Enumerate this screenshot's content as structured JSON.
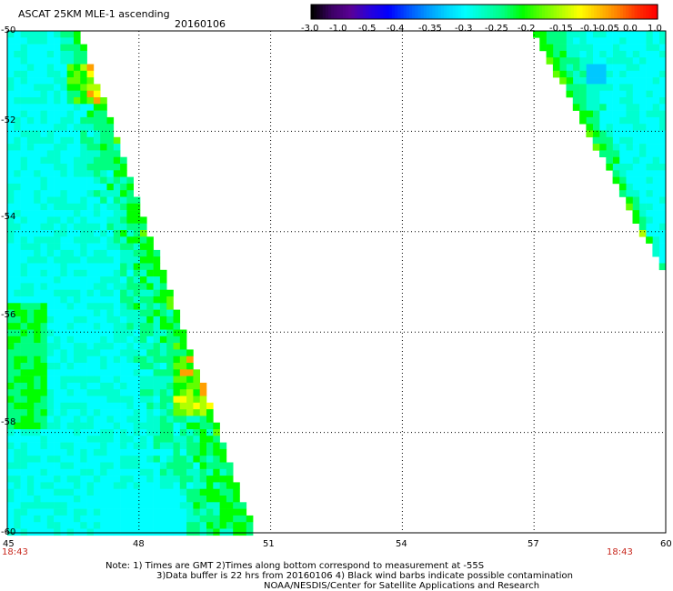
{
  "header": {
    "title": "ASCAT 25KM MLE-1 ascending",
    "date": "20160106"
  },
  "colorbar": {
    "labels": [
      "-3.0",
      "-1.0",
      "-0.5",
      "-0.4",
      "-0.35",
      "-0.3",
      "-0.25",
      "-0.2",
      "-0.15",
      "-0.1",
      "-0.05",
      "0.0",
      "1.0"
    ]
  },
  "axes": {
    "y_ticks": [
      "-50",
      "-52",
      "-54",
      "-56",
      "-58",
      "-60"
    ],
    "x_ticks": [
      "45",
      "48",
      "51",
      "54",
      "57",
      "60"
    ],
    "x_range": [
      45,
      60
    ],
    "y_range": [
      -50,
      -60
    ],
    "grid": true
  },
  "times": {
    "left": "18:43",
    "right": "18:43"
  },
  "notes": {
    "line1": "Note: 1) Times are GMT 2)Times along bottom correspond to measurement at -55S",
    "line2": "3)Data buffer is 22 hrs from 20160106 4) Black wind barbs indicate possible contamination",
    "line3": "NOAA/NESDIS/Center for Satellite Applications and Research"
  },
  "colors": {
    "palette": [
      "#000000",
      "#5a0096",
      "#0000ff",
      "#0080ff",
      "#00c8ff",
      "#00ffff",
      "#00ffb0",
      "#00ff00",
      "#80ff00",
      "#ffff00",
      "#ffa000",
      "#ff0000"
    ],
    "low_cyan": "#00ffff",
    "green": "#00ff00",
    "time_label": "#c8281e"
  }
}
